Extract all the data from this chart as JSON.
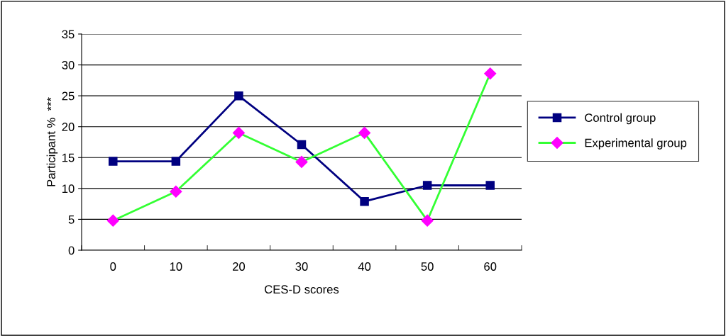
{
  "chart_data": {
    "type": "line",
    "xlabel": "CES-D scores",
    "ylabel": "Participant %  ***",
    "categories": [
      "0",
      "10",
      "20",
      "30",
      "40",
      "50",
      "60"
    ],
    "series": [
      {
        "name": "Control group",
        "color": "#000080",
        "marker": "square",
        "values": [
          14.4,
          14.4,
          25,
          17.1,
          7.9,
          10.5,
          10.5
        ]
      },
      {
        "name": "Experimental group",
        "color": "#33ff33",
        "marker": "diamond",
        "colors": [
          "#ff00ff",
          "#ff00ff",
          "#ff00ff",
          "#ff00ff",
          "#ff00ff",
          "#ff00ff",
          "#ff00ff"
        ],
        "values": [
          4.8,
          9.5,
          19,
          14.3,
          19,
          4.8,
          28.6
        ]
      }
    ],
    "ylim": [
      0,
      35
    ],
    "yticks": [
      0,
      5,
      10,
      15,
      20,
      25,
      30,
      35
    ],
    "grid": "y",
    "legend": "right"
  }
}
